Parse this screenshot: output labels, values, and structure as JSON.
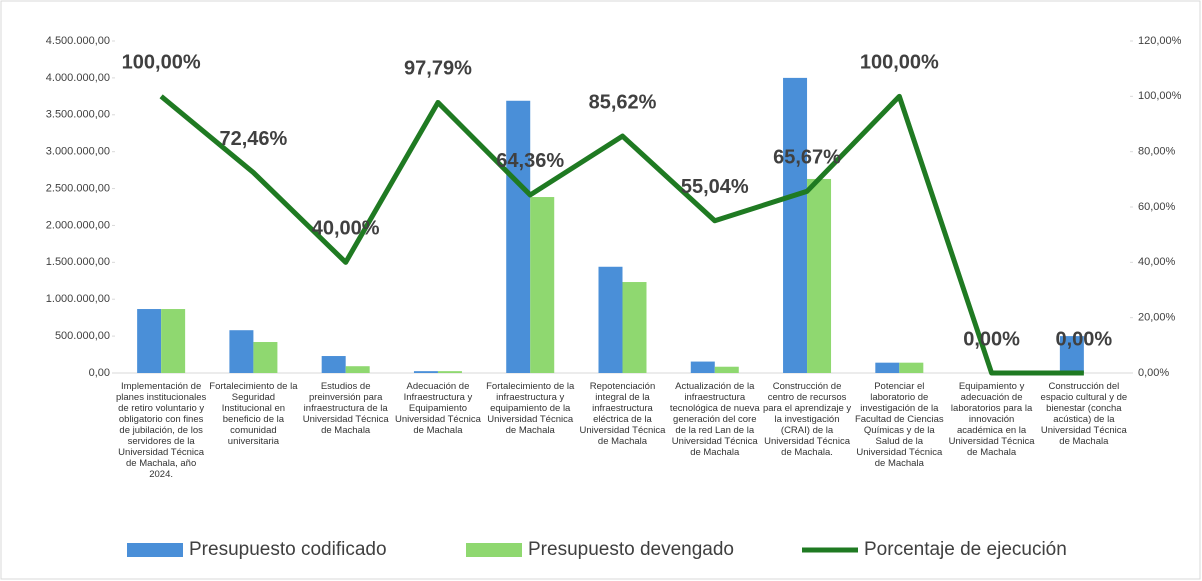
{
  "chart_data": {
    "type": "bar_line",
    "categories": [
      "Implementación de planes institucionales de retiro voluntario y obligatorio con fines de jubilación, de los servidores de la Universidad Técnica de Machala, año 2024.",
      "Fortalecimiento de la Seguridad Institucional en beneficio de la comunidad universitaria",
      "Estudios de preinversión para infraestructura de la Universidad Técnica de Machala",
      "Adecuación de Infraestructura y Equipamiento Universidad Técnica de Machala",
      "Fortalecimiento de la infraestructura y equipamiento de la Universidad Técnica de Machala",
      "Repotenciación integral de la infraestructura eléctrica de la Universidad Técnica de Machala",
      "Actualización de la infraestructura tecnológica de nueva generación del core de la red Lan de la Universidad Técnica de Machala",
      "Construcción de centro de recursos para el aprendizaje y la investigación (CRAI) de la Universidad Técnica de Machala.",
      "Potenciar el laboratorio de investigación de la Facultad de Ciencias Químicas y de la Salud de la Universidad Técnica de Machala",
      "Equipamiento y adecuación de laboratorios para la innovación académica en la Universidad Técnica de Machala",
      "Construcción del espacio cultural y de bienestar (concha acústica) de la Universidad Técnica de Machala"
    ],
    "series": [
      {
        "name": "Presupuesto codificado",
        "color": "#4a8fd8",
        "values": [
          867000,
          580000,
          230000,
          25000,
          3690000,
          1440000,
          155000,
          4000000,
          140000,
          0,
          500000
        ]
      },
      {
        "name": "Presupuesto devengado",
        "color": "#8fd870",
        "values": [
          867000,
          420000,
          92000,
          25000,
          2385000,
          1233000,
          85000,
          2630000,
          140000,
          0,
          0
        ]
      },
      {
        "name": "Porcentaje de ejecución",
        "color": "#1f7a22",
        "axis": "y2",
        "values": [
          100,
          72.46,
          40,
          97.79,
          64.36,
          85.62,
          55.04,
          65.67,
          100,
          0,
          0
        ],
        "value_labels": [
          "100,00%",
          "72,46%",
          "40,00%",
          "97,79%",
          "64,36%",
          "85,62%",
          "55,04%",
          "65,67%",
          "100,00%",
          "0,00%",
          "0,00%"
        ]
      }
    ],
    "ylim": [
      0,
      4500000
    ],
    "yticks": [
      {
        "value": 0,
        "label": "0,00"
      },
      {
        "value": 500000,
        "label": "500.000,00"
      },
      {
        "value": 1000000,
        "label": "1.000.000,00"
      },
      {
        "value": 1500000,
        "label": "1.500.000,00"
      },
      {
        "value": 2000000,
        "label": "2.000.000,00"
      },
      {
        "value": 2500000,
        "label": "2.500.000,00"
      },
      {
        "value": 3000000,
        "label": "3.000.000,00"
      },
      {
        "value": 3500000,
        "label": "3.500.000,00"
      },
      {
        "value": 4000000,
        "label": "4.000.000,00"
      },
      {
        "value": 4500000,
        "label": "4.500.000,00"
      }
    ],
    "y2lim": [
      0,
      120
    ],
    "y2ticks": [
      {
        "value": 0,
        "label": "0,00%"
      },
      {
        "value": 20,
        "label": "20,00%"
      },
      {
        "value": 40,
        "label": "40,00%"
      },
      {
        "value": 60,
        "label": "60,00%"
      },
      {
        "value": 80,
        "label": "80,00%"
      },
      {
        "value": 100,
        "label": "100,00%"
      },
      {
        "value": 120,
        "label": "120,00%"
      }
    ],
    "legend": "bottom"
  }
}
